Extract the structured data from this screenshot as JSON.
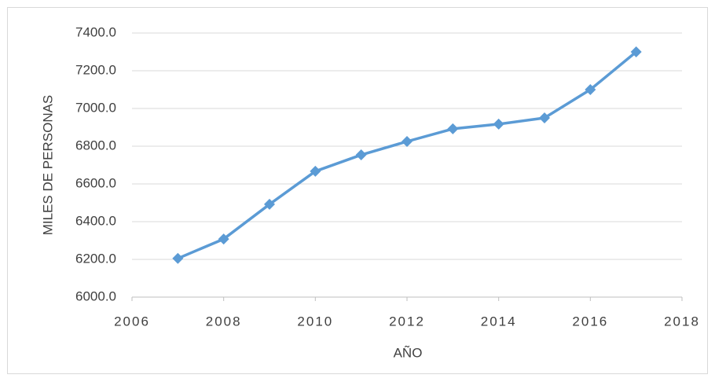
{
  "chart_data": {
    "type": "line",
    "x_label": "AÑO",
    "y_label": "MILES DE PERSONAS",
    "x": [
      2007,
      2008,
      2009,
      2010,
      2011,
      2012,
      2013,
      2014,
      2015,
      2016,
      2017
    ],
    "series": [
      {
        "name": "MILES DE PERSONAS",
        "color": "#5b9bd5",
        "values": [
          6205,
          6308,
          6492,
          6667,
          6754,
          6825,
          6892,
          6917,
          6950,
          7100,
          7300
        ]
      }
    ],
    "xlim": [
      2006,
      2018
    ],
    "xticks": [
      2006,
      2008,
      2010,
      2012,
      2014,
      2016,
      2018
    ],
    "ylim": [
      6000,
      7400
    ],
    "yticks": [
      {
        "value": 6000,
        "label": "6000.0"
      },
      {
        "value": 6200,
        "label": "6200.0"
      },
      {
        "value": 6400,
        "label": "6400.0"
      },
      {
        "value": 6600,
        "label": "6600.0"
      },
      {
        "value": 6800,
        "label": "6800.0"
      },
      {
        "value": 7000,
        "label": "7000.0"
      },
      {
        "value": 7200,
        "label": "7200.0"
      },
      {
        "value": 7400,
        "label": "7400.0"
      }
    ],
    "grid": true,
    "marker": "diamond"
  }
}
